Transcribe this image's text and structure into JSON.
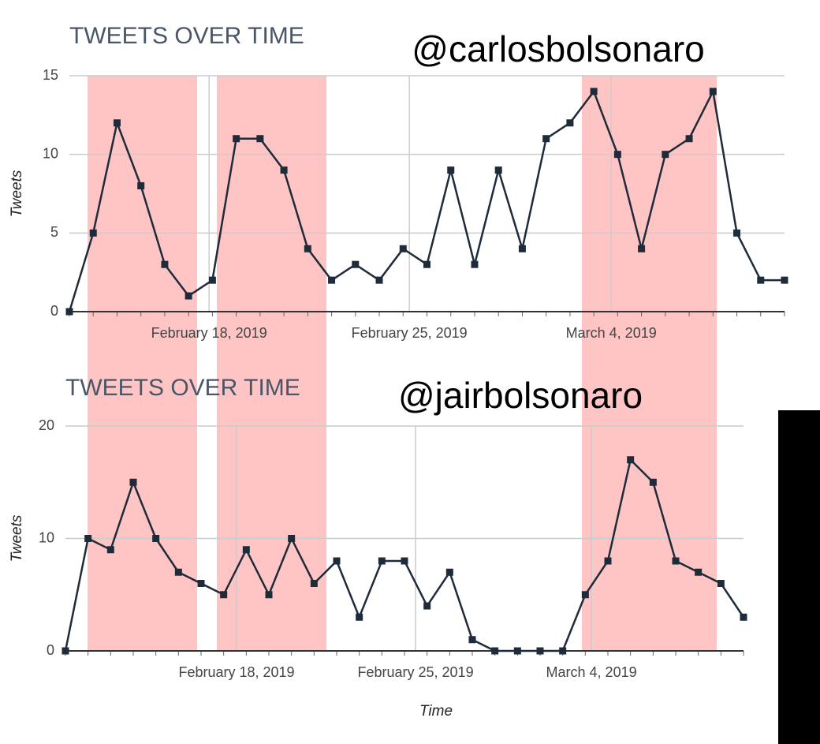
{
  "chart_data": [
    {
      "type": "line",
      "title": "TWEETS OVER TIME",
      "subtitle": "@carlosbolsonaro",
      "ylabel": "Tweets",
      "categories": [
        null,
        null,
        null,
        null,
        null,
        null,
        null,
        null,
        null,
        null,
        null,
        null,
        null,
        null,
        null,
        null,
        null,
        null,
        null,
        null,
        null,
        null,
        null,
        null,
        null,
        null,
        null,
        null,
        null,
        null,
        null
      ],
      "values": [
        0,
        5,
        12,
        8,
        3,
        1,
        2,
        11,
        11,
        9,
        4,
        2,
        3,
        2,
        4,
        3,
        9,
        3,
        9,
        4,
        11,
        12,
        14,
        10,
        4,
        10,
        11,
        14,
        5,
        2,
        2
      ],
      "color": "#1e2b3a",
      "xlim": [
        0,
        30
      ],
      "xticks": [
        {
          "value": 5.86,
          "label": "February 18, 2019"
        },
        {
          "value": 14.26,
          "label": "February 25, 2019"
        },
        {
          "value": 22.73,
          "label": "March 4, 2019"
        }
      ],
      "ylim": [
        0,
        15
      ],
      "yticks": [
        0,
        5,
        10,
        15
      ],
      "grid": true
    },
    {
      "type": "line",
      "title": "TWEETS OVER TIME",
      "subtitle": "@jairbolsonaro",
      "ylabel": "Tweets",
      "xlabel": "Time",
      "categories": [
        null,
        null,
        null,
        null,
        null,
        null,
        null,
        null,
        null,
        null,
        null,
        null,
        null,
        null,
        null,
        null,
        null,
        null,
        null,
        null,
        null,
        null,
        null,
        null,
        null,
        null,
        null,
        null,
        null,
        null,
        null
      ],
      "values": [
        0,
        10,
        9,
        15,
        10,
        7,
        6,
        5,
        9,
        5,
        10,
        6,
        8,
        3,
        8,
        8,
        4,
        7,
        1,
        0,
        0,
        0,
        0,
        5,
        8,
        17,
        15,
        8,
        7,
        6,
        3
      ],
      "color": "#1e2b3a",
      "xlim": [
        0,
        30
      ],
      "xticks": [
        {
          "value": 7.57,
          "label": "February 18, 2019"
        },
        {
          "value": 15.49,
          "label": "February 25, 2019"
        },
        {
          "value": 23.27,
          "label": "March 4, 2019"
        }
      ],
      "ylim": [
        0,
        20
      ],
      "yticks": [
        0,
        10,
        20
      ],
      "grid": true
    }
  ]
}
